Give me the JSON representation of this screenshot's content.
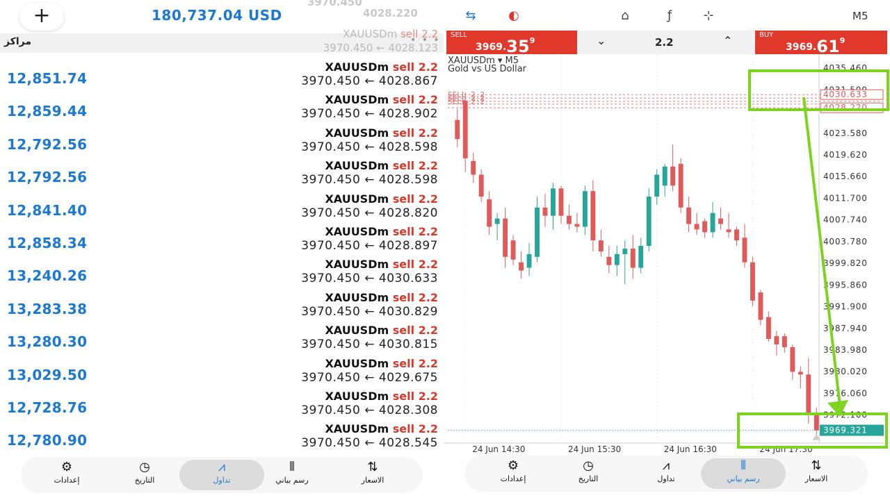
{
  "left": {
    "ghost_top": [
      "3970.450",
      "4028.220"
    ],
    "plus_label": "+",
    "balance": "180,737.04 USD",
    "positions_label": "مراكز",
    "menu_dots": "• • •",
    "ghost_row": {
      "symbol": "XAUUSDm",
      "side": "sell",
      "volume": "2.2",
      "prices": "3970.450 ← 4028.123"
    },
    "rows": [
      {
        "profit": "12,851.74",
        "symbol": "XAUUSDm",
        "side": "sell",
        "volume": "2.2",
        "open": "3970.450",
        "arrow": "←",
        "close": "4028.867"
      },
      {
        "profit": "12,859.44",
        "symbol": "XAUUSDm",
        "side": "sell",
        "volume": "2.2",
        "open": "3970.450",
        "arrow": "←",
        "close": "4028.902"
      },
      {
        "profit": "12,792.56",
        "symbol": "XAUUSDm",
        "side": "sell",
        "volume": "2.2",
        "open": "3970.450",
        "arrow": "←",
        "close": "4028.598"
      },
      {
        "profit": "12,792.56",
        "symbol": "XAUUSDm",
        "side": "sell",
        "volume": "2.2",
        "open": "3970.450",
        "arrow": "←",
        "close": "4028.598"
      },
      {
        "profit": "12,841.40",
        "symbol": "XAUUSDm",
        "side": "sell",
        "volume": "2.2",
        "open": "3970.450",
        "arrow": "←",
        "close": "4028.820"
      },
      {
        "profit": "12,858.34",
        "symbol": "XAUUSDm",
        "side": "sell",
        "volume": "2.2",
        "open": "3970.450",
        "arrow": "←",
        "close": "4028.897"
      },
      {
        "profit": "13,240.26",
        "symbol": "XAUUSDm",
        "side": "sell",
        "volume": "2.2",
        "open": "3970.450",
        "arrow": "←",
        "close": "4030.633"
      },
      {
        "profit": "13,283.38",
        "symbol": "XAUUSDm",
        "side": "sell",
        "volume": "2.2",
        "open": "3970.450",
        "arrow": "←",
        "close": "4030.829"
      },
      {
        "profit": "13,280.30",
        "symbol": "XAUUSDm",
        "side": "sell",
        "volume": "2.2",
        "open": "3970.450",
        "arrow": "←",
        "close": "4030.815"
      },
      {
        "profit": "13,029.50",
        "symbol": "XAUUSDm",
        "side": "sell",
        "volume": "2.2",
        "open": "3970.450",
        "arrow": "←",
        "close": "4029.675"
      },
      {
        "profit": "12,728.76",
        "symbol": "XAUUSDm",
        "side": "sell",
        "volume": "2.2",
        "open": "3970.450",
        "arrow": "←",
        "close": "4028.308"
      },
      {
        "profit": "12,780.90",
        "symbol": "XAUUSDm",
        "side": "sell",
        "volume": "2.2",
        "open": "3970.450",
        "arrow": "←",
        "close": "4028.545"
      }
    ],
    "nav": [
      {
        "label": "إعدادات",
        "icon": "gear-icon",
        "glyph": "⚙",
        "active": false
      },
      {
        "label": "التاريخ",
        "icon": "history-icon",
        "glyph": "◷",
        "active": false
      },
      {
        "label": "تداول",
        "icon": "trade-icon",
        "glyph": "⩘",
        "active": true
      },
      {
        "label": "رسم بياني",
        "icon": "chart-icon",
        "glyph": "⫴",
        "active": false
      },
      {
        "label": "الاسعار",
        "icon": "quotes-icon",
        "glyph": "⇅",
        "active": false
      }
    ]
  },
  "right": {
    "toolbar": {
      "timeframe": "M5",
      "icons": [
        "one-click-trading-icon",
        "indicator-toggle-icon",
        "objects-icon",
        "function-icon",
        "crosshair-icon"
      ],
      "glyphs": [
        "⇆",
        "◐",
        "⌂",
        "ƒ",
        "⊹"
      ]
    },
    "order": {
      "sell_caption": "SELL",
      "sell_main": "3969.",
      "sell_big": "35",
      "sell_sup": "9",
      "buy_caption": "BUY",
      "buy_main": "3969.",
      "buy_big": "61",
      "buy_sup": "9",
      "lot": "2.2",
      "down_glyph": "⌄",
      "up_glyph": "⌃"
    },
    "chart_title": "XAUUSDm ▾ M5",
    "chart_subtitle": "Gold vs US Dollar",
    "nav": [
      {
        "label": "إعدادات",
        "icon": "gear-icon",
        "glyph": "⚙",
        "active": false
      },
      {
        "label": "التاريخ",
        "icon": "history-icon",
        "glyph": "◷",
        "active": false
      },
      {
        "label": "تداول",
        "icon": "trade-icon",
        "glyph": "⩘",
        "active": false
      },
      {
        "label": "رسم بياني",
        "icon": "chart-icon",
        "glyph": "⫴",
        "active": true
      },
      {
        "label": "الاسعار",
        "icon": "quotes-icon",
        "glyph": "⇅",
        "active": false
      }
    ]
  },
  "chart_data": {
    "type": "candlestick",
    "symbol": "XAUUSDm",
    "timeframe": "M5",
    "y_ticks": [
      "4035.460",
      "4031.500",
      "4023.580",
      "4019.620",
      "4015.660",
      "4011.700",
      "4007.740",
      "4003.780",
      "3999.820",
      "3995.860",
      "3991.900",
      "3987.940",
      "3983.980",
      "3980.020",
      "3976.060",
      "3972.100"
    ],
    "y_tick_values": [
      4035.46,
      4031.5,
      4023.58,
      4019.62,
      4015.66,
      4011.7,
      4007.74,
      4003.78,
      3999.82,
      3995.86,
      3991.9,
      3987.94,
      3983.98,
      3980.02,
      3976.06,
      3972.1
    ],
    "x_ticks": [
      "24 Jun 14:30",
      "24 Jun 15:30",
      "24 Jun 16:30",
      "24 Jun 17:30"
    ],
    "x_tick_index": [
      1,
      13,
      25,
      37
    ],
    "order_labels": [
      "4030.633",
      "4028.220"
    ],
    "order_line_prices": [
      4030.633,
      4030.0,
      4029.4,
      4028.9,
      4028.22
    ],
    "order_line_label": "SELL 2.2",
    "current_price_label": "3969.321",
    "current_price": 3969.32,
    "colors": {
      "up": "#26a69a",
      "down": "#e05a5a",
      "order": "#e05a5a",
      "annotation": "#7ed321"
    },
    "candles": [
      {
        "o": 4026.0,
        "h": 4028.0,
        "l": 4021.0,
        "c": 4022.5
      },
      {
        "o": 4029.5,
        "h": 4031.0,
        "l": 4016.5,
        "c": 4019.0
      },
      {
        "o": 4018.5,
        "h": 4020.0,
        "l": 4014.5,
        "c": 4016.0
      },
      {
        "o": 4016.0,
        "h": 4017.0,
        "l": 4011.0,
        "c": 4012.0
      },
      {
        "o": 4011.5,
        "h": 4013.0,
        "l": 4005.0,
        "c": 4006.5
      },
      {
        "o": 4007.0,
        "h": 4009.0,
        "l": 4004.0,
        "c": 4008.0
      },
      {
        "o": 4008.0,
        "h": 4010.0,
        "l": 3999.0,
        "c": 4001.0
      },
      {
        "o": 4004.0,
        "h": 4005.0,
        "l": 3999.5,
        "c": 4000.5
      },
      {
        "o": 4000.0,
        "h": 4002.0,
        "l": 3997.0,
        "c": 3998.5
      },
      {
        "o": 3999.0,
        "h": 4003.5,
        "l": 3997.5,
        "c": 4001.5
      },
      {
        "o": 4001.0,
        "h": 4012.0,
        "l": 4000.0,
        "c": 4010.0
      },
      {
        "o": 4010.0,
        "h": 4012.5,
        "l": 4006.5,
        "c": 4008.5
      },
      {
        "o": 4008.5,
        "h": 4014.5,
        "l": 4006.0,
        "c": 4013.5
      },
      {
        "o": 4013.5,
        "h": 4014.0,
        "l": 4007.0,
        "c": 4008.5
      },
      {
        "o": 4008.5,
        "h": 4010.5,
        "l": 4006.0,
        "c": 4007.0
      },
      {
        "o": 4007.0,
        "h": 4009.0,
        "l": 4005.5,
        "c": 4006.5
      },
      {
        "o": 4006.5,
        "h": 4014.0,
        "l": 4005.0,
        "c": 4013.0
      },
      {
        "o": 4013.0,
        "h": 4015.0,
        "l": 4002.0,
        "c": 4004.0
      },
      {
        "o": 4004.0,
        "h": 4006.0,
        "l": 4001.0,
        "c": 4002.0
      },
      {
        "o": 4001.0,
        "h": 4003.0,
        "l": 3998.0,
        "c": 3999.5
      },
      {
        "o": 3999.5,
        "h": 4003.0,
        "l": 3997.5,
        "c": 4001.5
      },
      {
        "o": 4001.5,
        "h": 4004.0,
        "l": 3996.0,
        "c": 4002.5
      },
      {
        "o": 4002.5,
        "h": 4005.0,
        "l": 3997.0,
        "c": 3999.0
      },
      {
        "o": 3999.0,
        "h": 4004.5,
        "l": 3998.0,
        "c": 4003.0
      },
      {
        "o": 4003.0,
        "h": 4013.5,
        "l": 4002.0,
        "c": 4012.0
      },
      {
        "o": 4012.0,
        "h": 4017.0,
        "l": 4010.5,
        "c": 4016.0
      },
      {
        "o": 4014.0,
        "h": 4018.0,
        "l": 4012.0,
        "c": 4017.5
      },
      {
        "o": 4017.5,
        "h": 4021.5,
        "l": 4013.0,
        "c": 4014.0
      },
      {
        "o": 4018.0,
        "h": 4019.0,
        "l": 4009.0,
        "c": 4010.0
      },
      {
        "o": 4010.0,
        "h": 4012.0,
        "l": 4005.5,
        "c": 4007.0
      },
      {
        "o": 4007.0,
        "h": 4009.0,
        "l": 4005.0,
        "c": 4006.0
      },
      {
        "o": 4007.5,
        "h": 4008.0,
        "l": 4004.5,
        "c": 4005.5
      },
      {
        "o": 4005.5,
        "h": 4011.0,
        "l": 4004.5,
        "c": 4009.0
      },
      {
        "o": 4008.0,
        "h": 4010.0,
        "l": 4006.0,
        "c": 4007.0
      },
      {
        "o": 4006.0,
        "h": 4009.0,
        "l": 4004.5,
        "c": 4005.5
      },
      {
        "o": 4006.0,
        "h": 4006.5,
        "l": 4003.0,
        "c": 4004.0
      },
      {
        "o": 4004.5,
        "h": 4007.0,
        "l": 3999.0,
        "c": 4000.0
      },
      {
        "o": 4000.0,
        "h": 4001.0,
        "l": 3992.0,
        "c": 3993.0
      },
      {
        "o": 3994.5,
        "h": 3995.0,
        "l": 3988.5,
        "c": 3989.5
      },
      {
        "o": 3990.0,
        "h": 3991.0,
        "l": 3985.5,
        "c": 3986.0
      },
      {
        "o": 3986.5,
        "h": 3987.5,
        "l": 3983.0,
        "c": 3985.0
      },
      {
        "o": 3986.5,
        "h": 3987.0,
        "l": 3983.5,
        "c": 3984.5
      },
      {
        "o": 3984.5,
        "h": 3985.0,
        "l": 3978.5,
        "c": 3980.0
      },
      {
        "o": 3980.0,
        "h": 3981.0,
        "l": 3977.0,
        "c": 3979.5
      },
      {
        "o": 3979.5,
        "h": 3982.5,
        "l": 3970.5,
        "c": 3972.5
      },
      {
        "o": 3972.5,
        "h": 3973.5,
        "l": 3967.5,
        "c": 3969.3
      }
    ]
  }
}
